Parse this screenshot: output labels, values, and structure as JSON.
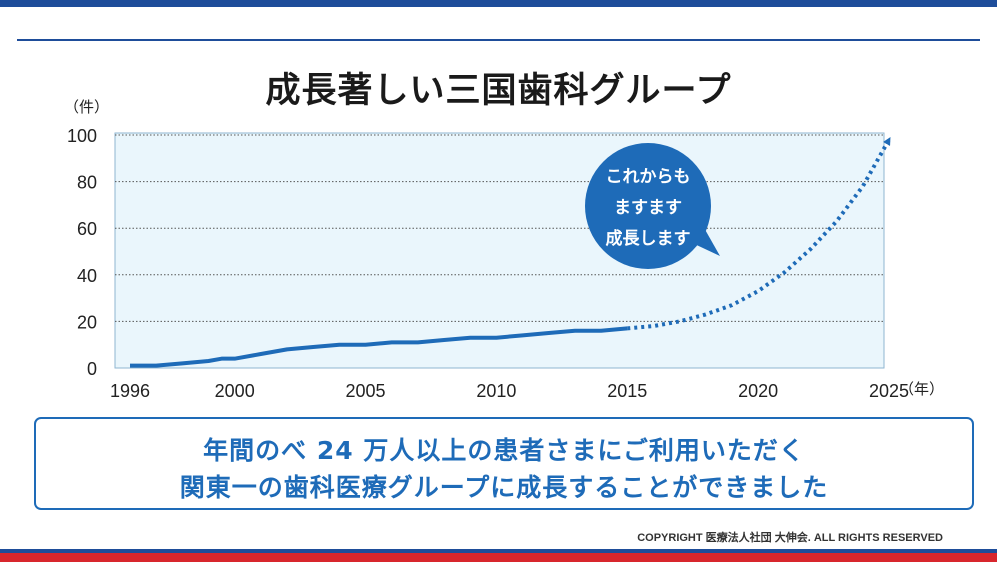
{
  "title": "成長著しい三国歯科グループ",
  "colors": {
    "accent": "#1e6bb8",
    "bar": "#1e4d9a",
    "red": "#d8262d",
    "plot_bg": "#eaf6fc"
  },
  "chart_data": {
    "type": "line",
    "y_unit": "（件）",
    "x_unit": "（年）",
    "xlim": [
      1996,
      2025
    ],
    "ylim": [
      0,
      100
    ],
    "x_ticks": [
      "1996",
      "2000",
      "2005",
      "2010",
      "2015",
      "2020",
      "2025"
    ],
    "y_ticks": [
      "0",
      "20",
      "40",
      "60",
      "80",
      "100"
    ],
    "grid": true,
    "series": [
      {
        "style": "solid",
        "points": [
          [
            1996,
            1
          ],
          [
            1997,
            1
          ],
          [
            1998,
            2
          ],
          [
            1999,
            3
          ],
          [
            1999.5,
            4
          ],
          [
            2000,
            4
          ],
          [
            2001,
            6
          ],
          [
            2002,
            8
          ],
          [
            2003,
            9
          ],
          [
            2004,
            10
          ],
          [
            2005,
            10
          ],
          [
            2006,
            11
          ],
          [
            2007,
            11
          ],
          [
            2008,
            12
          ],
          [
            2009,
            13
          ],
          [
            2010,
            13
          ],
          [
            2011,
            14
          ],
          [
            2012,
            15
          ],
          [
            2013,
            16
          ],
          [
            2014,
            16
          ],
          [
            2015,
            17
          ]
        ]
      },
      {
        "style": "dotted",
        "points": [
          [
            2015,
            17
          ],
          [
            2016,
            18
          ],
          [
            2017,
            20
          ],
          [
            2018,
            23
          ],
          [
            2019,
            27
          ],
          [
            2020,
            33
          ],
          [
            2021,
            41
          ],
          [
            2022,
            51
          ],
          [
            2023,
            63
          ],
          [
            2024,
            78
          ],
          [
            2025,
            98
          ]
        ]
      }
    ],
    "annotation": [
      "これからも",
      "ますます",
      "成長します"
    ]
  },
  "message": {
    "line1": "年間のべ 24 万人以上の患者さまにご利用いただく",
    "line2": "関東一の歯科医療グループに成長することができました"
  },
  "copyright": "COPYRIGHT 医療法人社団 大伸会. ALL RIGHTS RESERVED"
}
